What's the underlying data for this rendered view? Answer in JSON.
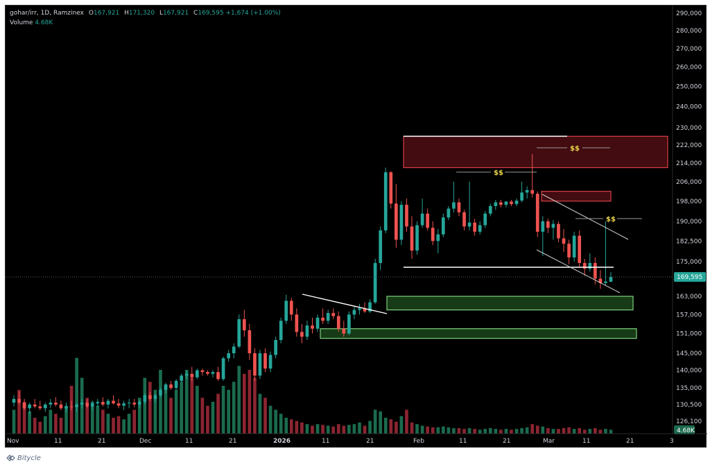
{
  "legend": {
    "symbol": "gohar/irr, 1D, Ramzinex",
    "open_label": "O",
    "open": "167,921",
    "high_label": "H",
    "high": "171,320",
    "low_label": "L",
    "low": "167,921",
    "close_label": "C",
    "close": "169,595",
    "change": "+1,674 (+1.00%)",
    "volume_label": "Volume",
    "volume": "4.68K"
  },
  "footer": {
    "brand": "Bitycle"
  },
  "colors": {
    "up": "#26a69a",
    "down": "#ef5350",
    "volume_up": "#1b6b4e",
    "volume_down": "#8b2531",
    "supply_zone": "#5a1015",
    "demand_zone": "#1c4a1c",
    "liquidity_marker": "#e8d24a",
    "trendline": "#ffffff"
  },
  "chart_data": {
    "type": "candlestick",
    "timeframe": "1D",
    "exchange": "Ramzinex",
    "y_axis": {
      "ticks": [
        "290,000",
        "280,000",
        "270,000",
        "260,000",
        "250,000",
        "240,000",
        "230,000",
        "222,000",
        "214,000",
        "206,000",
        "198,000",
        "190,000",
        "182,500",
        "175,000",
        "163,000",
        "157,000",
        "151,000",
        "145,000",
        "140,000",
        "135,000",
        "130,500",
        "126,100"
      ],
      "last_price": "169,595",
      "last_volume": "4.68K",
      "scale": "log"
    },
    "x_axis": {
      "ticks": [
        "Nov",
        "11",
        "21",
        "Dec",
        "11",
        "21",
        "2026",
        "11",
        "21",
        "Feb",
        "11",
        "21",
        "Mar",
        "11",
        "21",
        "3"
      ]
    },
    "candles": [
      {
        "o": 131000,
        "h": 133000,
        "l": 130000,
        "c": 132000,
        "v": 0.3
      },
      {
        "o": 132000,
        "h": 134000,
        "l": 130500,
        "c": 131000,
        "v": 0.55
      },
      {
        "o": 131000,
        "h": 132000,
        "l": 129000,
        "c": 129500,
        "v": 0.4
      },
      {
        "o": 129500,
        "h": 131000,
        "l": 128000,
        "c": 130500,
        "v": 0.28
      },
      {
        "o": 130500,
        "h": 132000,
        "l": 129500,
        "c": 130000,
        "v": 0.2
      },
      {
        "o": 130000,
        "h": 131500,
        "l": 129000,
        "c": 129500,
        "v": 0.15
      },
      {
        "o": 129500,
        "h": 131000,
        "l": 128500,
        "c": 130500,
        "v": 0.22
      },
      {
        "o": 130500,
        "h": 132000,
        "l": 129500,
        "c": 131000,
        "v": 0.3
      },
      {
        "o": 131000,
        "h": 132500,
        "l": 130000,
        "c": 130500,
        "v": 0.25
      },
      {
        "o": 130500,
        "h": 131500,
        "l": 129000,
        "c": 129500,
        "v": 0.2
      },
      {
        "o": 129500,
        "h": 131000,
        "l": 128500,
        "c": 130000,
        "v": 0.35
      },
      {
        "o": 130000,
        "h": 131500,
        "l": 129000,
        "c": 129800,
        "v": 0.6
      },
      {
        "o": 129800,
        "h": 131000,
        "l": 128500,
        "c": 130500,
        "v": 0.95
      },
      {
        "o": 130500,
        "h": 132000,
        "l": 129500,
        "c": 131000,
        "v": 0.7
      },
      {
        "o": 131000,
        "h": 132000,
        "l": 129500,
        "c": 130000,
        "v": 0.45
      },
      {
        "o": 130000,
        "h": 131500,
        "l": 129000,
        "c": 130800,
        "v": 0.4
      },
      {
        "o": 130800,
        "h": 132000,
        "l": 129800,
        "c": 131200,
        "v": 0.35
      },
      {
        "o": 131200,
        "h": 132500,
        "l": 130000,
        "c": 130500,
        "v": 0.3
      },
      {
        "o": 130500,
        "h": 132000,
        "l": 129500,
        "c": 131500,
        "v": 0.25
      },
      {
        "o": 131500,
        "h": 133000,
        "l": 130500,
        "c": 130800,
        "v": 0.2
      },
      {
        "o": 130800,
        "h": 132000,
        "l": 129500,
        "c": 130200,
        "v": 0.22
      },
      {
        "o": 130200,
        "h": 131500,
        "l": 129000,
        "c": 130800,
        "v": 0.18
      },
      {
        "o": 130800,
        "h": 132000,
        "l": 129500,
        "c": 131000,
        "v": 0.25
      },
      {
        "o": 131000,
        "h": 132000,
        "l": 129800,
        "c": 130500,
        "v": 0.3
      },
      {
        "o": 130500,
        "h": 131800,
        "l": 129500,
        "c": 131200,
        "v": 0.45
      },
      {
        "o": 131200,
        "h": 133500,
        "l": 130500,
        "c": 133000,
        "v": 0.7
      },
      {
        "o": 133000,
        "h": 134000,
        "l": 131500,
        "c": 132000,
        "v": 0.65
      },
      {
        "o": 132000,
        "h": 133500,
        "l": 131000,
        "c": 133000,
        "v": 0.55
      },
      {
        "o": 133000,
        "h": 135000,
        "l": 132500,
        "c": 134500,
        "v": 0.8
      },
      {
        "o": 134500,
        "h": 136500,
        "l": 133500,
        "c": 136000,
        "v": 0.6
      },
      {
        "o": 136000,
        "h": 137000,
        "l": 134500,
        "c": 135000,
        "v": 0.45
      },
      {
        "o": 135000,
        "h": 137500,
        "l": 134500,
        "c": 137000,
        "v": 0.55
      },
      {
        "o": 137000,
        "h": 139000,
        "l": 136500,
        "c": 138500,
        "v": 0.65
      },
      {
        "o": 138500,
        "h": 140000,
        "l": 137500,
        "c": 139000,
        "v": 0.8
      },
      {
        "o": 139000,
        "h": 141000,
        "l": 137000,
        "c": 138000,
        "v": 0.7
      },
      {
        "o": 138000,
        "h": 140500,
        "l": 137500,
        "c": 140000,
        "v": 0.6
      },
      {
        "o": 140000,
        "h": 140500,
        "l": 138500,
        "c": 139500,
        "v": 0.45
      },
      {
        "o": 139500,
        "h": 140000,
        "l": 138500,
        "c": 139000,
        "v": 0.35
      },
      {
        "o": 139000,
        "h": 140000,
        "l": 138000,
        "c": 139500,
        "v": 0.4
      },
      {
        "o": 139500,
        "h": 141000,
        "l": 137000,
        "c": 137500,
        "v": 0.5
      },
      {
        "o": 137500,
        "h": 144000,
        "l": 137000,
        "c": 143500,
        "v": 0.6
      },
      {
        "o": 143500,
        "h": 146000,
        "l": 142500,
        "c": 145000,
        "v": 0.55
      },
      {
        "o": 145000,
        "h": 148000,
        "l": 143500,
        "c": 147000,
        "v": 0.65
      },
      {
        "o": 147000,
        "h": 157000,
        "l": 146500,
        "c": 155500,
        "v": 0.85
      },
      {
        "o": 155500,
        "h": 158500,
        "l": 150000,
        "c": 152000,
        "v": 0.75
      },
      {
        "o": 152000,
        "h": 154000,
        "l": 143000,
        "c": 145000,
        "v": 0.8
      },
      {
        "o": 145000,
        "h": 146500,
        "l": 137000,
        "c": 138500,
        "v": 0.7
      },
      {
        "o": 138500,
        "h": 146000,
        "l": 137500,
        "c": 145000,
        "v": 0.5
      },
      {
        "o": 145000,
        "h": 146500,
        "l": 139500,
        "c": 140500,
        "v": 0.45
      },
      {
        "o": 140500,
        "h": 145500,
        "l": 139500,
        "c": 144500,
        "v": 0.35
      },
      {
        "o": 144500,
        "h": 150000,
        "l": 143500,
        "c": 149000,
        "v": 0.3
      },
      {
        "o": 149000,
        "h": 156000,
        "l": 148000,
        "c": 155000,
        "v": 0.25
      },
      {
        "o": 155000,
        "h": 163500,
        "l": 154000,
        "c": 161500,
        "v": 0.2
      },
      {
        "o": 161500,
        "h": 162500,
        "l": 155000,
        "c": 157000,
        "v": 0.18
      },
      {
        "o": 157000,
        "h": 159000,
        "l": 150000,
        "c": 151500,
        "v": 0.16
      },
      {
        "o": 151500,
        "h": 154000,
        "l": 148000,
        "c": 150000,
        "v": 0.14
      },
      {
        "o": 150000,
        "h": 155000,
        "l": 149000,
        "c": 153500,
        "v": 0.12
      },
      {
        "o": 153500,
        "h": 156000,
        "l": 151000,
        "c": 152500,
        "v": 0.1
      },
      {
        "o": 152500,
        "h": 157000,
        "l": 151500,
        "c": 156000,
        "v": 0.12
      },
      {
        "o": 156000,
        "h": 159000,
        "l": 154000,
        "c": 155000,
        "v": 0.11
      },
      {
        "o": 155000,
        "h": 158500,
        "l": 154000,
        "c": 157500,
        "v": 0.1
      },
      {
        "o": 157500,
        "h": 159000,
        "l": 155500,
        "c": 156500,
        "v": 0.09
      },
      {
        "o": 156500,
        "h": 158000,
        "l": 151500,
        "c": 152500,
        "v": 0.12
      },
      {
        "o": 152500,
        "h": 155000,
        "l": 150000,
        "c": 151000,
        "v": 0.1
      },
      {
        "o": 151000,
        "h": 158000,
        "l": 150500,
        "c": 157000,
        "v": 0.11
      },
      {
        "o": 157000,
        "h": 159500,
        "l": 155500,
        "c": 158500,
        "v": 0.12
      },
      {
        "o": 158500,
        "h": 160500,
        "l": 157000,
        "c": 159000,
        "v": 0.14
      },
      {
        "o": 159000,
        "h": 161000,
        "l": 157500,
        "c": 158000,
        "v": 0.1
      },
      {
        "o": 158000,
        "h": 162000,
        "l": 157500,
        "c": 161000,
        "v": 0.16
      },
      {
        "o": 161000,
        "h": 176000,
        "l": 160500,
        "c": 174500,
        "v": 0.3
      },
      {
        "o": 174500,
        "h": 188000,
        "l": 172000,
        "c": 186500,
        "v": 0.28
      },
      {
        "o": 186500,
        "h": 212000,
        "l": 185500,
        "c": 210000,
        "v": 0.2
      },
      {
        "o": 210000,
        "h": 210500,
        "l": 195000,
        "c": 197000,
        "v": 0.18
      },
      {
        "o": 197000,
        "h": 205000,
        "l": 180000,
        "c": 183000,
        "v": 0.15
      },
      {
        "o": 183000,
        "h": 198000,
        "l": 181000,
        "c": 196500,
        "v": 0.22
      },
      {
        "o": 196500,
        "h": 199000,
        "l": 186000,
        "c": 188000,
        "v": 0.3
      },
      {
        "o": 188000,
        "h": 192000,
        "l": 176000,
        "c": 179000,
        "v": 0.14
      },
      {
        "o": 179000,
        "h": 190000,
        "l": 177500,
        "c": 188500,
        "v": 0.12
      },
      {
        "o": 188500,
        "h": 199000,
        "l": 187500,
        "c": 193000,
        "v": 0.1
      },
      {
        "o": 193000,
        "h": 195000,
        "l": 186500,
        "c": 187500,
        "v": 0.09
      },
      {
        "o": 187500,
        "h": 190000,
        "l": 181000,
        "c": 182500,
        "v": 0.08
      },
      {
        "o": 182500,
        "h": 187000,
        "l": 178000,
        "c": 185000,
        "v": 0.08
      },
      {
        "o": 185000,
        "h": 193000,
        "l": 184000,
        "c": 191500,
        "v": 0.09
      },
      {
        "o": 191500,
        "h": 196000,
        "l": 190500,
        "c": 195000,
        "v": 0.08
      },
      {
        "o": 195000,
        "h": 206000,
        "l": 193500,
        "c": 197500,
        "v": 0.07
      },
      {
        "o": 197500,
        "h": 199000,
        "l": 192000,
        "c": 193500,
        "v": 0.07
      },
      {
        "o": 193500,
        "h": 194500,
        "l": 186500,
        "c": 188000,
        "v": 0.06
      },
      {
        "o": 188000,
        "h": 206000,
        "l": 186500,
        "c": 189500,
        "v": 0.07
      },
      {
        "o": 189500,
        "h": 191000,
        "l": 184500,
        "c": 186000,
        "v": 0.06
      },
      {
        "o": 186000,
        "h": 190000,
        "l": 185000,
        "c": 188500,
        "v": 0.05
      },
      {
        "o": 188500,
        "h": 194000,
        "l": 187500,
        "c": 193000,
        "v": 0.06
      },
      {
        "o": 193000,
        "h": 197000,
        "l": 192000,
        "c": 196000,
        "v": 0.07
      },
      {
        "o": 196000,
        "h": 198500,
        "l": 194500,
        "c": 197500,
        "v": 0.06
      },
      {
        "o": 197500,
        "h": 198500,
        "l": 195500,
        "c": 196500,
        "v": 0.05
      },
      {
        "o": 196500,
        "h": 198000,
        "l": 195500,
        "c": 197800,
        "v": 0.06
      },
      {
        "o": 197800,
        "h": 198500,
        "l": 196000,
        "c": 196800,
        "v": 0.05
      },
      {
        "o": 196800,
        "h": 199000,
        "l": 196000,
        "c": 198200,
        "v": 0.06
      },
      {
        "o": 198200,
        "h": 206000,
        "l": 197500,
        "c": 201500,
        "v": 0.07
      },
      {
        "o": 201500,
        "h": 204000,
        "l": 199000,
        "c": 202500,
        "v": 0.08
      },
      {
        "o": 202500,
        "h": 218000,
        "l": 199500,
        "c": 201000,
        "v": 0.12
      },
      {
        "o": 201000,
        "h": 202000,
        "l": 184000,
        "c": 186000,
        "v": 0.1
      },
      {
        "o": 186000,
        "h": 192000,
        "l": 177000,
        "c": 190000,
        "v": 0.09
      },
      {
        "o": 190000,
        "h": 191000,
        "l": 185500,
        "c": 187500,
        "v": 0.07
      },
      {
        "o": 187500,
        "h": 190500,
        "l": 183000,
        "c": 189000,
        "v": 0.06
      },
      {
        "o": 189000,
        "h": 190000,
        "l": 182000,
        "c": 183500,
        "v": 0.06
      },
      {
        "o": 183500,
        "h": 187000,
        "l": 178500,
        "c": 181500,
        "v": 0.07
      },
      {
        "o": 181500,
        "h": 183000,
        "l": 174000,
        "c": 176500,
        "v": 0.08
      },
      {
        "o": 176500,
        "h": 186000,
        "l": 175000,
        "c": 184500,
        "v": 0.06
      },
      {
        "o": 184500,
        "h": 186500,
        "l": 173000,
        "c": 174500,
        "v": 0.07
      },
      {
        "o": 174500,
        "h": 176000,
        "l": 170000,
        "c": 172500,
        "v": 0.05
      },
      {
        "o": 172500,
        "h": 178000,
        "l": 171500,
        "c": 174500,
        "v": 0.06
      },
      {
        "o": 174500,
        "h": 176500,
        "l": 167000,
        "c": 169000,
        "v": 0.07
      },
      {
        "o": 169000,
        "h": 172000,
        "l": 165500,
        "c": 167500,
        "v": 0.05
      },
      {
        "o": 167500,
        "h": 190000,
        "l": 166500,
        "c": 168000,
        "v": 0.06
      },
      {
        "o": 167921,
        "h": 171320,
        "l": 167921,
        "c": 169595,
        "v": 0.05
      }
    ],
    "drawings": {
      "supply_zones": [
        {
          "from": 212000,
          "to": 226000
        },
        {
          "from": 198000,
          "to": 202000
        }
      ],
      "demand_zones": [
        {
          "from": 158500,
          "to": 163000
        },
        {
          "from": 149500,
          "to": 152500
        }
      ],
      "horizontal_lines": [
        {
          "price": 226000
        },
        {
          "price": 173000
        }
      ],
      "liquidity_markers": [
        "$$",
        "$$",
        "$$"
      ]
    }
  }
}
